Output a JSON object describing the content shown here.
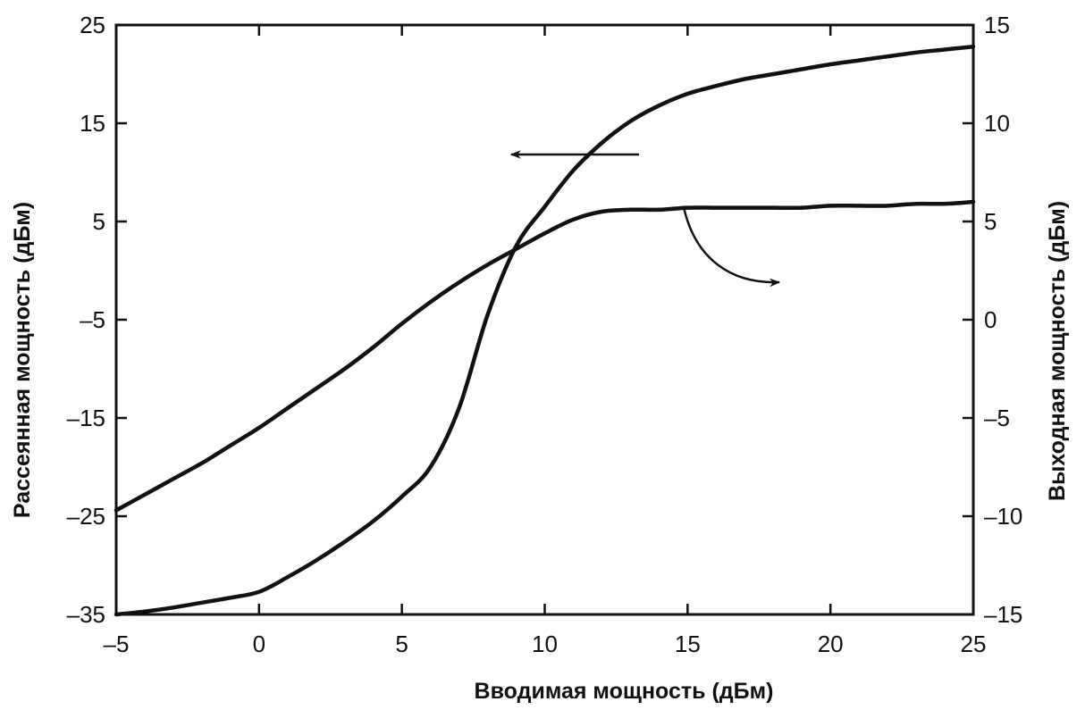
{
  "chart_data": {
    "type": "line",
    "xlabel": "Вводимая мощность (дБм)",
    "ylabel_left": "Рассеянная мощность (дБм)",
    "ylabel_right": "Выходная мощность (дБм)",
    "xlim": [
      -5,
      25
    ],
    "ylim_left": [
      -35,
      25
    ],
    "ylim_right": [
      -15,
      15
    ],
    "x_ticks": [
      "–5",
      "0",
      "5",
      "10",
      "15",
      "20",
      "25"
    ],
    "y_left_ticks": [
      "–35",
      "–25",
      "–15",
      "–5",
      "5",
      "15",
      "25"
    ],
    "y_right_ticks": [
      "–15",
      "–10",
      "–5",
      "0",
      "5",
      "10",
      "15"
    ],
    "grid": false,
    "series": [
      {
        "axis": "left",
        "x": [
          -5,
          -4,
          -3,
          -2,
          -1,
          0,
          1,
          2,
          3,
          4,
          5,
          6,
          7,
          8,
          9,
          10,
          11,
          12,
          13,
          14,
          15,
          16,
          17,
          18,
          19,
          20,
          21,
          22,
          23,
          24,
          25
        ],
        "y": [
          -35,
          -34.7,
          -34.3,
          -33.8,
          -33.3,
          -32.7,
          -31.2,
          -29.5,
          -27.6,
          -25.5,
          -23,
          -20,
          -14,
          -4.5,
          2.5,
          6.5,
          10.2,
          13,
          15.2,
          16.8,
          18,
          18.8,
          19.5,
          20,
          20.5,
          21,
          21.4,
          21.8,
          22.2,
          22.5,
          22.8
        ]
      },
      {
        "axis": "right",
        "x": [
          -5,
          -4,
          -3,
          -2,
          -1,
          0,
          1,
          2,
          3,
          4,
          5,
          6,
          7,
          8,
          9,
          10,
          11,
          12,
          13,
          14,
          15,
          16,
          17,
          18,
          19,
          20,
          21,
          22,
          23,
          24,
          25
        ],
        "y": [
          -9.7,
          -8.9,
          -8.1,
          -7.3,
          -6.4,
          -5.5,
          -4.5,
          -3.5,
          -2.5,
          -1.4,
          -0.2,
          0.9,
          1.9,
          2.8,
          3.6,
          4.4,
          5.1,
          5.5,
          5.6,
          5.6,
          5.7,
          5.7,
          5.7,
          5.7,
          5.7,
          5.8,
          5.8,
          5.8,
          5.9,
          5.9,
          6.0
        ]
      }
    ]
  }
}
